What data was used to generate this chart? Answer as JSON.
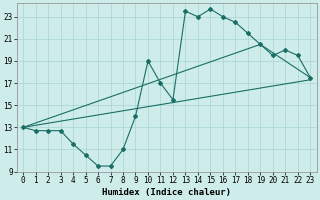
{
  "xlabel": "Humidex (Indice chaleur)",
  "bg_color": "#ceecea",
  "grid_color": "#aed8d4",
  "line_color": "#1a6e64",
  "xlim": [
    -0.5,
    23.5
  ],
  "ylim": [
    9,
    24.2
  ],
  "yticks": [
    9,
    11,
    13,
    15,
    17,
    19,
    21,
    23
  ],
  "xticks": [
    0,
    1,
    2,
    3,
    4,
    5,
    6,
    7,
    8,
    9,
    10,
    11,
    12,
    13,
    14,
    15,
    16,
    17,
    18,
    19,
    20,
    21,
    22,
    23
  ],
  "line1_x": [
    0,
    1,
    2,
    3,
    4,
    5,
    6,
    7,
    8,
    9,
    10,
    11,
    12,
    13,
    14,
    15,
    16,
    17,
    18,
    19,
    20,
    21,
    22,
    23
  ],
  "line1_y": [
    13,
    12.7,
    12.7,
    12.7,
    11.5,
    10.5,
    9.5,
    9.5,
    11.0,
    14.0,
    19.0,
    17.0,
    15.5,
    23.5,
    23.0,
    23.7,
    23.0,
    22.5,
    21.5,
    20.5,
    19.5,
    20.0,
    19.5,
    17.5
  ],
  "line2_x": [
    0,
    23
  ],
  "line2_y": [
    13.0,
    17.3
  ],
  "line3_x": [
    0,
    19,
    23
  ],
  "line3_y": [
    13.0,
    20.5,
    17.5
  ],
  "lw": 0.8,
  "ms": 2.0,
  "xlabel_fontsize": 6.5,
  "tick_fontsize": 5.5
}
